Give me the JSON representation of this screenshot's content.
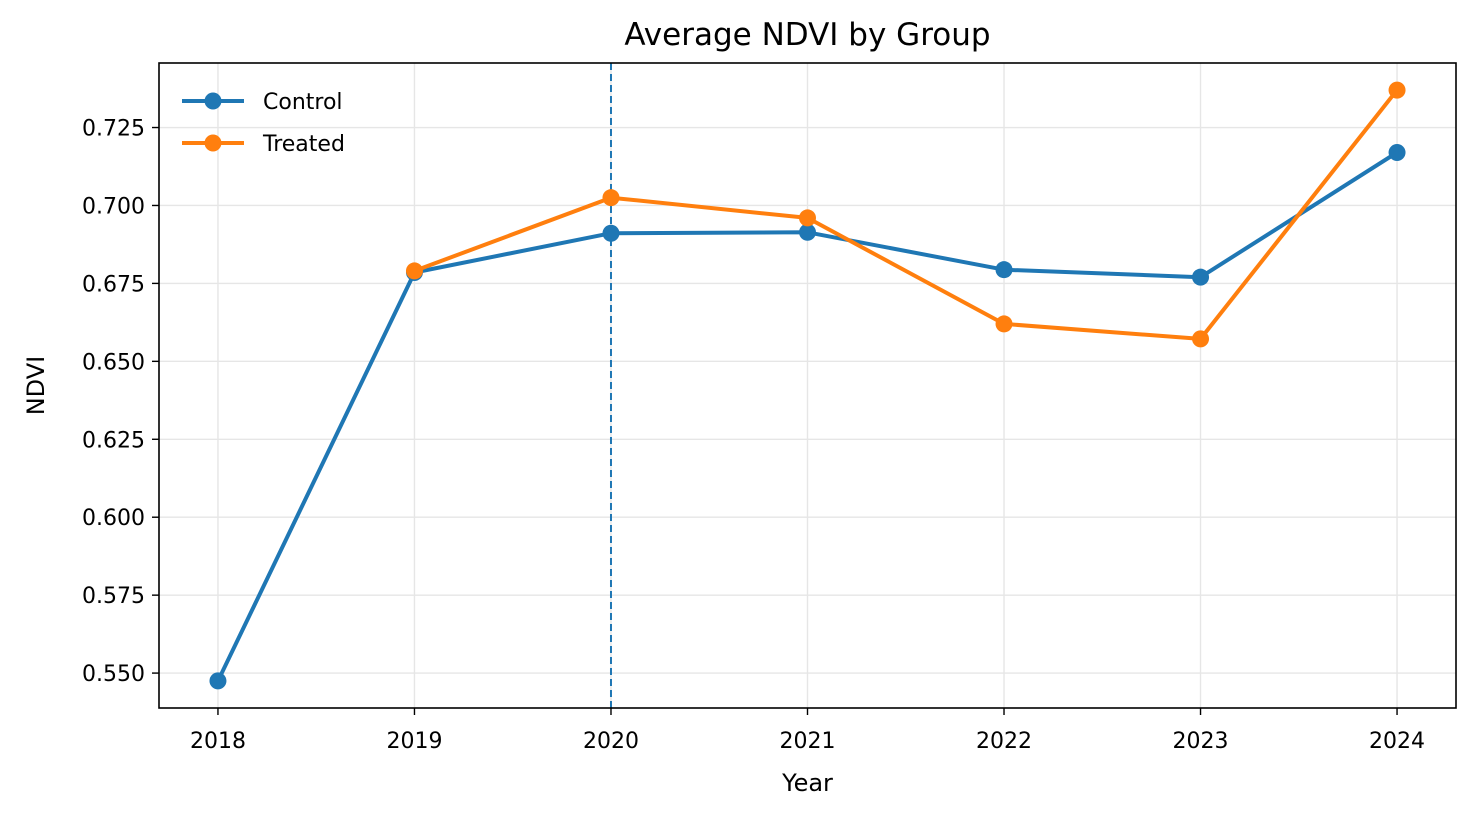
{
  "chart_data": {
    "type": "line",
    "title": "Average NDVI by Group",
    "xlabel": "Year",
    "ylabel": "NDVI",
    "x": [
      2018,
      2019,
      2020,
      2021,
      2022,
      2023,
      2024
    ],
    "x_tick_labels": [
      "2018",
      "2019",
      "2020",
      "2021",
      "2022",
      "2023",
      "2024"
    ],
    "xlim": [
      2017.7,
      2024.3
    ],
    "ylim": [
      0.5388,
      0.7457
    ],
    "y_ticks": [
      0.55,
      0.575,
      0.6,
      0.625,
      0.65,
      0.675,
      0.7,
      0.725
    ],
    "y_tick_labels": [
      "0.550",
      "0.575",
      "0.600",
      "0.625",
      "0.650",
      "0.675",
      "0.700",
      "0.725"
    ],
    "grid": true,
    "legend_position": "top-left",
    "reference_line": {
      "orientation": "vertical",
      "x": 2020,
      "style": "dashed",
      "color": "#1f77b4"
    },
    "series": [
      {
        "name": "Control",
        "color": "#1f77b4",
        "marker": "circle",
        "values": [
          0.5475,
          0.6785,
          0.6911,
          0.6914,
          0.6794,
          0.677,
          0.717
        ]
      },
      {
        "name": "Treated",
        "color": "#ff7f0e",
        "marker": "circle",
        "values": [
          null,
          0.679,
          0.7025,
          0.696,
          0.662,
          0.6572,
          0.737
        ]
      }
    ]
  }
}
